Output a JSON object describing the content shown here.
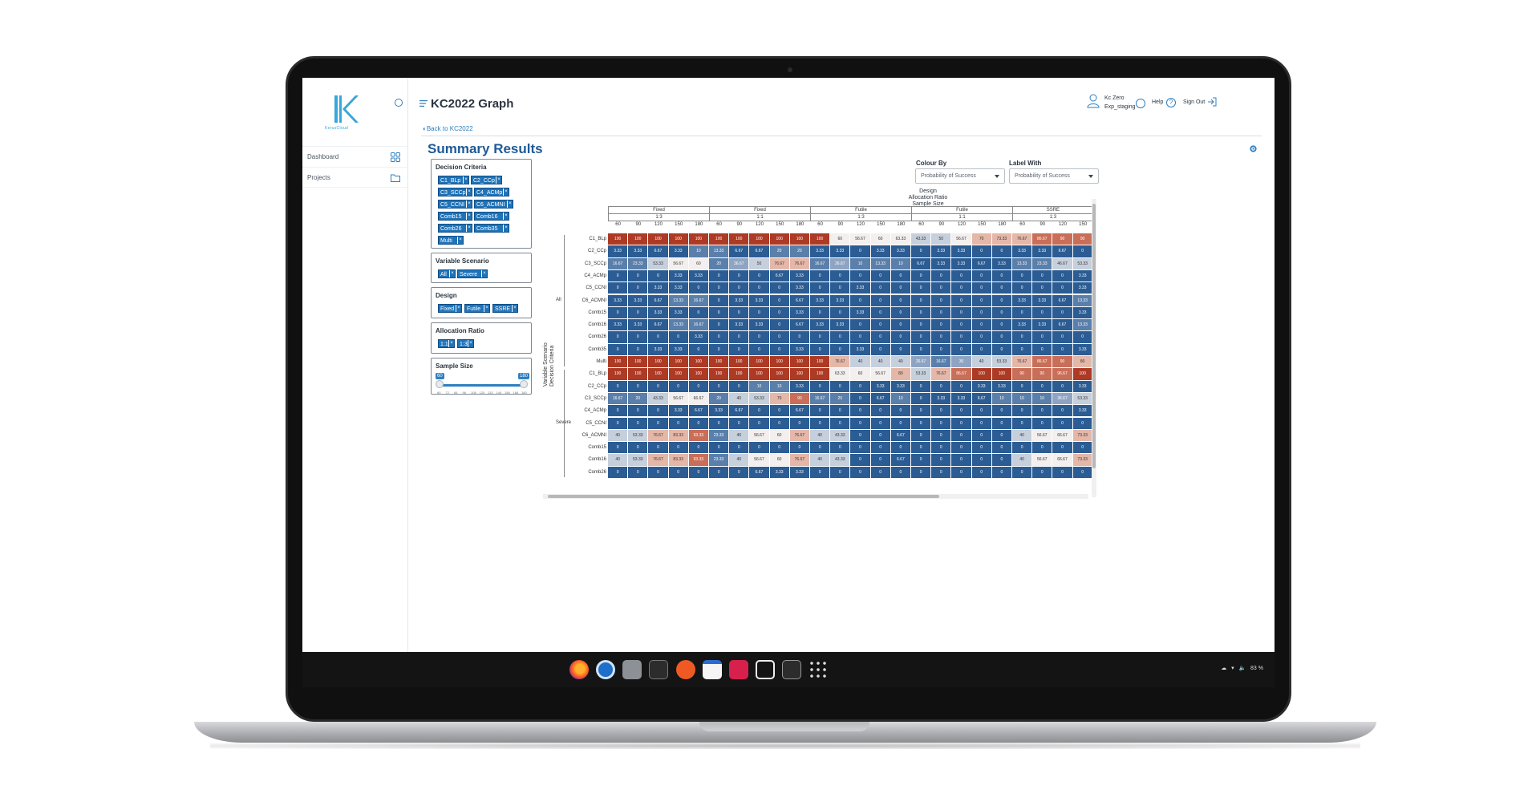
{
  "app": {
    "logo_text": "KerusCloud",
    "title": "KC2022 Graph",
    "back_link": "Back to KC2022"
  },
  "sidebar": {
    "items": [
      {
        "label": "Dashboard",
        "icon": "grid-icon"
      },
      {
        "label": "Projects",
        "icon": "folder-icon"
      }
    ]
  },
  "header": {
    "user_name": "Kc Zero",
    "user_env": "Exp_staging",
    "help_label": "Help",
    "signout_label": "Sign Out"
  },
  "summary": {
    "title": "Summary Results",
    "filters": {
      "decision_criteria": {
        "label": "Decision Criteria",
        "chips": [
          "C1_BLp",
          "C2_CCp",
          "C3_SCCp",
          "C4_ACMp",
          "C5_CCNI",
          "C6_ACMNI",
          "Comb15",
          "Comb16",
          "Comb26",
          "Comb35",
          "Multi"
        ]
      },
      "variable_scenario": {
        "label": "Variable Scenario",
        "chips": [
          "All",
          "Severe"
        ]
      },
      "design": {
        "label": "Design",
        "chips": [
          "Fixed",
          "Futile",
          "SSRE"
        ]
      },
      "allocation_ratio": {
        "label": "Allocation Ratio",
        "chips": [
          "1:1",
          "1:3"
        ]
      },
      "sample_size": {
        "label": "Sample Size",
        "min": "60",
        "max": "180",
        "ticks": [
          "60",
          "72",
          "84",
          "96",
          "108",
          "120",
          "132",
          "144",
          "156",
          "168",
          "180"
        ]
      }
    },
    "colour_by": {
      "label": "Colour By",
      "value": "Probability of Success"
    },
    "label_with": {
      "label": "Label With",
      "value": "Probability of Success"
    }
  },
  "heatmap": {
    "top_titles": [
      "Design",
      "Allocation Ratio",
      "Sample Size"
    ],
    "axis_title_lines": [
      "Variable Scenario",
      "Decision Criteria"
    ],
    "groups": [
      {
        "design": "Fixed",
        "ratio": "1:3",
        "sizes": [
          "60",
          "90",
          "120",
          "150",
          "180"
        ]
      },
      {
        "design": "Fixed",
        "ratio": "1:1",
        "sizes": [
          "60",
          "90",
          "120",
          "150",
          "180"
        ]
      },
      {
        "design": "Futile",
        "ratio": "1:3",
        "sizes": [
          "60",
          "90",
          "120",
          "150",
          "180"
        ]
      },
      {
        "design": "Futile",
        "ratio": "1:1",
        "sizes": [
          "60",
          "90",
          "120",
          "150",
          "180"
        ]
      },
      {
        "design": "SSRE",
        "ratio": "1:3",
        "sizes": [
          "60",
          "90",
          "120",
          "150"
        ]
      }
    ],
    "scenarios": [
      {
        "name": "All",
        "rows": [
          {
            "label": "C1_BLp",
            "values": [
              "100",
              "100",
              "100",
              "100",
              "100",
              "100",
              "100",
              "100",
              "100",
              "100",
              "100",
              "60",
              "56.67",
              "60",
              "63.33",
              "43.33",
              "50",
              "56.67",
              "70",
              "73.33",
              "76.67",
              "86.67",
              "90",
              "90"
            ]
          },
          {
            "label": "C2_CCp",
            "values": [
              "3.33",
              "3.33",
              "6.67",
              "3.33",
              "10",
              "13.33",
              "6.67",
              "6.67",
              "20",
              "20",
              "3.33",
              "3.33",
              "0",
              "3.33",
              "3.33",
              "0",
              "3.33",
              "3.33",
              "0",
              "0",
              "3.33",
              "3.33",
              "6.67",
              "0"
            ]
          },
          {
            "label": "C3_SCCp",
            "values": [
              "16.67",
              "23.33",
              "53.33",
              "56.67",
              "60",
              "20",
              "36.67",
              "50",
              "76.67",
              "76.67",
              "16.67",
              "26.67",
              "10",
              "13.33",
              "10",
              "6.67",
              "3.33",
              "3.33",
              "6.67",
              "3.33",
              "13.33",
              "23.33",
              "46.67",
              "53.33"
            ]
          },
          {
            "label": "C4_ACMp",
            "values": [
              "0",
              "0",
              "0",
              "3.33",
              "3.33",
              "0",
              "0",
              "0",
              "6.67",
              "3.33",
              "0",
              "0",
              "0",
              "0",
              "0",
              "0",
              "0",
              "0",
              "0",
              "0",
              "0",
              "0",
              "0",
              "3.33"
            ]
          },
          {
            "label": "C5_CCNI",
            "values": [
              "0",
              "0",
              "3.33",
              "3.33",
              "0",
              "0",
              "0",
              "0",
              "0",
              "3.33",
              "0",
              "0",
              "3.33",
              "0",
              "0",
              "0",
              "0",
              "0",
              "0",
              "0",
              "0",
              "0",
              "0",
              "3.33"
            ]
          },
          {
            "label": "C6_ACMNI",
            "values": [
              "3.33",
              "3.33",
              "6.67",
              "13.33",
              "16.67",
              "0",
              "3.33",
              "3.33",
              "0",
              "6.67",
              "3.33",
              "3.33",
              "0",
              "0",
              "0",
              "0",
              "0",
              "0",
              "0",
              "0",
              "3.33",
              "3.33",
              "6.67",
              "13.33"
            ]
          },
          {
            "label": "Comb15",
            "values": [
              "0",
              "0",
              "3.33",
              "3.33",
              "0",
              "0",
              "0",
              "0",
              "0",
              "3.33",
              "0",
              "0",
              "3.33",
              "0",
              "0",
              "0",
              "0",
              "0",
              "0",
              "0",
              "0",
              "0",
              "0",
              "3.33"
            ]
          },
          {
            "label": "Comb16",
            "values": [
              "3.33",
              "3.33",
              "6.67",
              "13.33",
              "16.67",
              "0",
              "3.33",
              "3.33",
              "0",
              "6.67",
              "3.33",
              "3.33",
              "0",
              "0",
              "0",
              "0",
              "0",
              "0",
              "0",
              "0",
              "3.33",
              "3.33",
              "6.67",
              "13.33"
            ]
          },
          {
            "label": "Comb26",
            "values": [
              "0",
              "0",
              "0",
              "0",
              "3.33",
              "0",
              "0",
              "0",
              "0",
              "0",
              "0",
              "0",
              "0",
              "0",
              "0",
              "0",
              "0",
              "0",
              "0",
              "0",
              "0",
              "0",
              "0",
              "0"
            ]
          },
          {
            "label": "Comb35",
            "values": [
              "0",
              "0",
              "3.33",
              "3.33",
              "0",
              "0",
              "0",
              "0",
              "0",
              "3.33",
              "0",
              "0",
              "3.33",
              "0",
              "0",
              "0",
              "0",
              "0",
              "0",
              "0",
              "0",
              "0",
              "0",
              "3.33"
            ]
          },
          {
            "label": "Multi",
            "values": [
              "100",
              "100",
              "100",
              "100",
              "100",
              "100",
              "100",
              "100",
              "100",
              "100",
              "100",
              "76.67",
              "40",
              "40",
              "40",
              "26.67",
              "16.67",
              "30",
              "40",
              "53.33",
              "76.67",
              "86.67",
              "90",
              "80"
            ]
          }
        ]
      },
      {
        "name": "Severe",
        "rows": [
          {
            "label": "C1_BLp",
            "values": [
              "100",
              "100",
              "100",
              "100",
              "100",
              "100",
              "100",
              "100",
              "100",
              "100",
              "100",
              "63.33",
              "60",
              "56.67",
              "80",
              "53.33",
              "76.67",
              "86.67",
              "100",
              "100",
              "90",
              "90",
              "96.67",
              "100"
            ]
          },
          {
            "label": "C2_CCp",
            "values": [
              "0",
              "0",
              "0",
              "0",
              "0",
              "0",
              "0",
              "10",
              "10",
              "3.33",
              "0",
              "0",
              "0",
              "3.33",
              "3.33",
              "0",
              "0",
              "0",
              "3.33",
              "3.33",
              "0",
              "0",
              "0",
              "3.33"
            ]
          },
          {
            "label": "C3_SCCp",
            "values": [
              "16.67",
              "20",
              "43.33",
              "56.67",
              "66.67",
              "20",
              "40",
              "53.33",
              "70",
              "90",
              "16.67",
              "20",
              "0",
              "6.67",
              "10",
              "0",
              "3.33",
              "3.33",
              "6.67",
              "10",
              "10",
              "10",
              "36.67",
              "53.33"
            ]
          },
          {
            "label": "C4_ACMp",
            "values": [
              "0",
              "0",
              "0",
              "3.33",
              "6.67",
              "3.33",
              "6.67",
              "0",
              "0",
              "6.67",
              "0",
              "0",
              "0",
              "0",
              "0",
              "0",
              "0",
              "0",
              "0",
              "0",
              "0",
              "0",
              "0",
              "3.33"
            ]
          },
          {
            "label": "C5_CCNI",
            "values": [
              "0",
              "0",
              "0",
              "0",
              "0",
              "0",
              "0",
              "0",
              "0",
              "0",
              "0",
              "0",
              "0",
              "0",
              "0",
              "0",
              "0",
              "0",
              "0",
              "0",
              "0",
              "0",
              "0",
              "0"
            ]
          },
          {
            "label": "C6_ACMNI",
            "values": [
              "40",
              "53.33",
              "76.67",
              "83.33",
              "93.33",
              "23.33",
              "40",
              "56.67",
              "60",
              "76.67",
              "40",
              "43.33",
              "0",
              "0",
              "6.67",
              "0",
              "0",
              "0",
              "0",
              "0",
              "40",
              "56.67",
              "66.67",
              "73.33"
            ]
          },
          {
            "label": "Comb15",
            "values": [
              "0",
              "0",
              "0",
              "0",
              "0",
              "0",
              "0",
              "0",
              "0",
              "0",
              "0",
              "0",
              "0",
              "0",
              "0",
              "0",
              "0",
              "0",
              "0",
              "0",
              "0",
              "0",
              "0",
              "0"
            ]
          },
          {
            "label": "Comb16",
            "values": [
              "40",
              "53.33",
              "76.67",
              "83.33",
              "93.33",
              "23.33",
              "40",
              "56.67",
              "60",
              "76.67",
              "40",
              "43.33",
              "0",
              "0",
              "6.67",
              "0",
              "0",
              "0",
              "0",
              "0",
              "40",
              "56.67",
              "66.67",
              "73.33"
            ]
          },
          {
            "label": "Comb26",
            "values": [
              "0",
              "0",
              "0",
              "0",
              "0",
              "0",
              "0",
              "6.67",
              "3.33",
              "3.33",
              "0",
              "0",
              "0",
              "0",
              "0",
              "0",
              "0",
              "0",
              "0",
              "0",
              "0",
              "0",
              "0",
              "0"
            ]
          }
        ]
      }
    ]
  },
  "taskbar": {
    "icons": [
      "firefox-icon",
      "chromium-icon",
      "files-icon",
      "terminal-icon",
      "ubuntu-icon",
      "calendar-icon",
      "crop-icon",
      "screenshot-icon",
      "console-icon",
      "apps-grid-icon"
    ],
    "battery": "83 %"
  },
  "colors": {
    "brand": "#1f5a96",
    "chip": "#1f73b8",
    "low": "#2b5c93",
    "high": "#b03a26"
  }
}
